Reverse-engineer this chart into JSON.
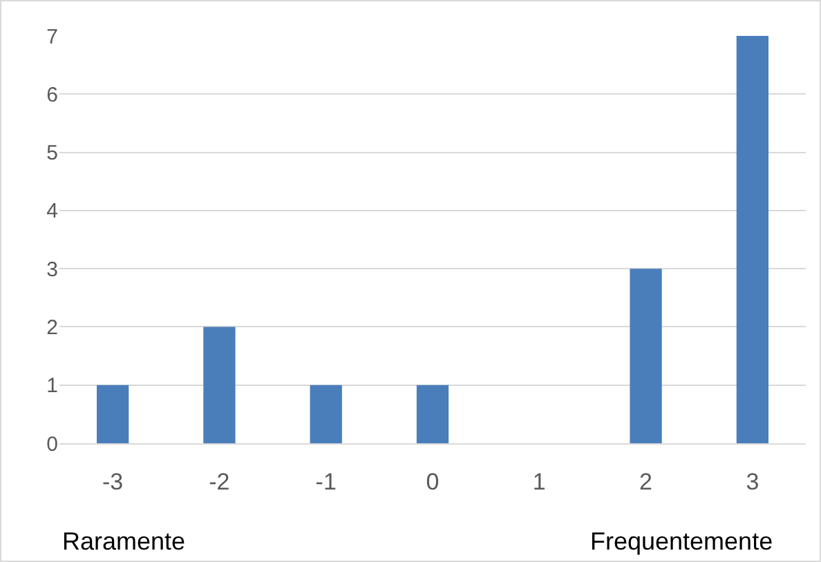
{
  "chart_data": {
    "type": "bar",
    "categories": [
      "-3",
      "-2",
      "-1",
      "0",
      "1",
      "2",
      "3"
    ],
    "values": [
      1,
      2,
      1,
      1,
      0,
      3,
      7
    ],
    "color": "#4a7ebb",
    "ylim": [
      0,
      7
    ],
    "yticks": [
      0,
      1,
      2,
      3,
      4,
      5,
      6,
      7
    ],
    "grid": "y",
    "legend": false,
    "annotations": [
      "Raramente",
      "Frequentemente"
    ]
  }
}
